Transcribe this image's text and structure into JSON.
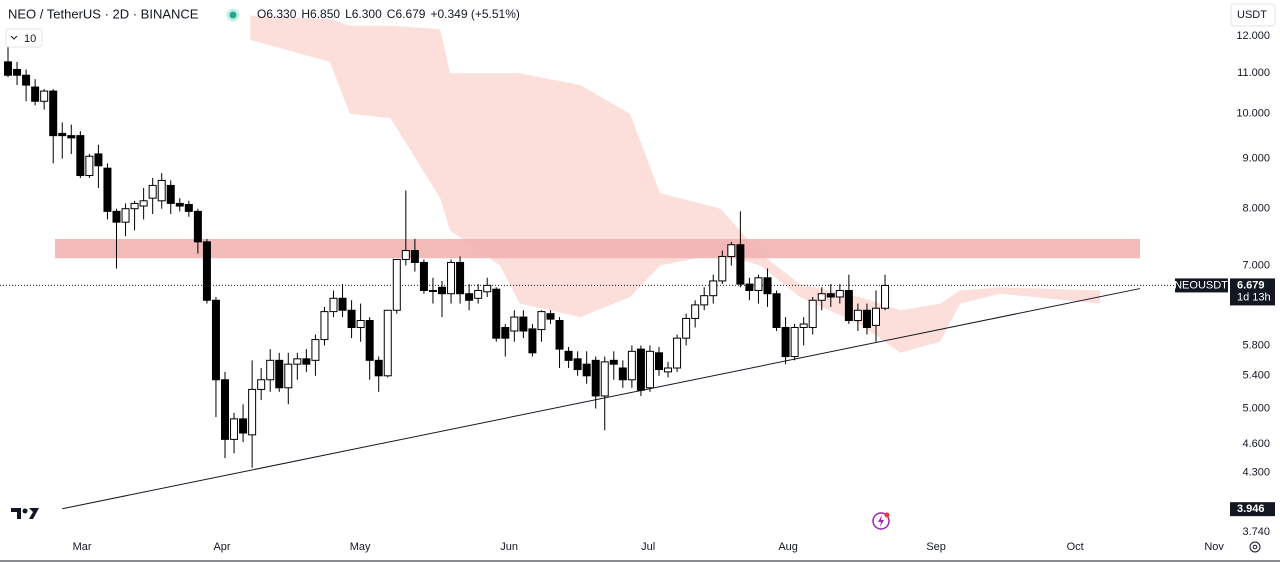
{
  "chart_data": {
    "type": "candlestick",
    "title": "NEO / TetherUS · 2D · BINANCE",
    "ohlc_text": [
      "O6.330",
      "H6.850",
      "L6.300",
      "C6.679",
      "+0.349 (+5.51%)"
    ],
    "interval_button": "10",
    "currency_button": "USDT",
    "symbol": "NEOUSDT",
    "countdown": "1d 13h",
    "log_scale": true,
    "up_color": "#ffffff",
    "down_color": "#000000",
    "border_color": "#000000",
    "open": [
      11.3,
      11.1,
      10.95,
      10.65,
      10.3,
      10.55,
      9.55,
      9.5,
      9.5,
      8.65,
      9.1,
      8.8,
      7.95,
      7.75,
      8.0,
      8.05,
      8.2,
      8.15,
      8.45,
      8.1,
      8.08,
      7.95,
      7.4,
      6.45,
      5.35,
      4.65,
      4.88,
      4.7,
      5.23,
      5.35,
      5.6,
      5.25,
      5.55,
      5.62,
      5.6,
      5.88,
      6.28,
      6.48,
      6.3,
      6.05,
      6.15,
      5.6,
      5.4,
      6.3,
      7.1,
      7.25,
      7.05,
      6.6,
      6.65,
      6.55,
      7.05,
      6.55,
      6.48,
      6.58,
      6.62,
      6.05,
      6.0,
      6.2,
      6.03,
      6.02,
      6.25,
      6.15,
      5.72,
      5.62,
      5.55,
      5.6,
      5.15,
      5.6,
      5.5,
      5.35,
      5.75,
      5.25,
      5.7,
      5.45,
      5.5,
      5.9,
      6.18,
      6.38,
      6.52,
      6.75,
      7.15,
      7.35,
      6.7,
      6.6,
      6.8,
      6.55,
      6.05,
      5.65,
      6.05,
      6.05,
      6.45,
      6.55,
      6.5,
      6.6,
      6.15,
      6.3,
      6.08,
      6.33
    ],
    "high": [
      11.7,
      11.3,
      11.1,
      10.85,
      10.6,
      10.6,
      9.8,
      9.75,
      9.6,
      9.1,
      9.3,
      8.9,
      8.0,
      8.1,
      8.15,
      8.4,
      8.6,
      8.7,
      8.55,
      8.2,
      8.15,
      8.0,
      7.45,
      6.5,
      5.45,
      4.95,
      5.05,
      5.6,
      5.5,
      5.75,
      5.7,
      5.7,
      5.7,
      5.75,
      5.95,
      6.35,
      6.6,
      6.7,
      6.45,
      6.4,
      6.2,
      5.65,
      6.3,
      7.1,
      8.35,
      7.45,
      7.1,
      6.8,
      6.75,
      7.1,
      7.15,
      6.7,
      6.7,
      6.8,
      6.65,
      6.1,
      6.3,
      6.3,
      6.1,
      6.3,
      6.3,
      6.2,
      5.78,
      5.72,
      5.72,
      5.65,
      5.65,
      5.72,
      5.6,
      5.8,
      5.8,
      5.8,
      5.78,
      5.58,
      5.95,
      6.25,
      6.45,
      6.65,
      6.85,
      7.25,
      7.4,
      7.95,
      6.8,
      6.85,
      6.95,
      6.6,
      6.2,
      6.1,
      6.2,
      6.5,
      6.65,
      6.7,
      6.7,
      6.85,
      6.4,
      6.4,
      6.6,
      6.85
    ],
    "low": [
      10.9,
      10.7,
      10.3,
      10.2,
      10.1,
      8.9,
      9.0,
      9.1,
      8.6,
      8.6,
      8.4,
      7.8,
      6.95,
      7.5,
      7.6,
      7.8,
      7.9,
      8.0,
      7.9,
      7.95,
      7.85,
      7.2,
      6.4,
      4.9,
      4.45,
      4.5,
      4.62,
      4.35,
      5.1,
      5.2,
      5.2,
      5.05,
      5.35,
      5.45,
      5.4,
      5.8,
      6.2,
      6.2,
      5.9,
      5.85,
      5.35,
      5.2,
      5.38,
      6.25,
      7.0,
      6.9,
      6.55,
      6.4,
      6.2,
      6.4,
      6.4,
      6.3,
      6.4,
      6.5,
      5.85,
      5.65,
      5.85,
      5.9,
      5.65,
      5.85,
      6.1,
      5.5,
      5.5,
      5.4,
      5.3,
      5.0,
      4.75,
      5.35,
      5.25,
      5.25,
      5.15,
      5.2,
      5.4,
      5.38,
      5.45,
      5.8,
      6.05,
      6.3,
      6.4,
      6.7,
      7.0,
      6.65,
      6.45,
      6.4,
      6.35,
      6.0,
      5.55,
      5.6,
      5.8,
      5.95,
      6.3,
      6.35,
      6.4,
      6.1,
      6.0,
      5.95,
      5.85,
      6.3
    ],
    "close": [
      10.95,
      10.95,
      10.7,
      10.3,
      10.55,
      9.5,
      9.5,
      9.45,
      8.65,
      9.05,
      8.85,
      7.95,
      7.75,
      8.0,
      8.1,
      8.15,
      8.45,
      8.55,
      8.1,
      8.05,
      7.95,
      7.4,
      6.45,
      5.35,
      4.65,
      4.88,
      4.72,
      5.23,
      5.35,
      5.6,
      5.25,
      5.55,
      5.62,
      5.55,
      5.88,
      6.28,
      6.48,
      6.3,
      6.05,
      6.15,
      5.6,
      5.4,
      6.3,
      7.1,
      7.25,
      7.05,
      6.6,
      6.6,
      6.55,
      7.05,
      6.55,
      6.45,
      6.6,
      6.68,
      5.9,
      5.9,
      6.2,
      6.0,
      5.7,
      6.28,
      6.17,
      5.75,
      5.6,
      5.48,
      5.4,
      5.15,
      5.58,
      5.55,
      5.35,
      5.72,
      5.22,
      5.72,
      5.48,
      5.5,
      5.9,
      6.18,
      6.38,
      6.52,
      6.75,
      7.15,
      7.35,
      6.7,
      6.6,
      6.8,
      6.55,
      6.05,
      5.65,
      6.05,
      6.1,
      6.45,
      6.55,
      6.5,
      6.6,
      6.15,
      6.3,
      6.05,
      6.33,
      6.679
    ],
    "cloud": {
      "color": "#fcd9d5",
      "x": [
        26.8,
        35.6,
        37.8,
        42.3,
        47.8,
        48.9,
        54.4,
        56.6,
        63.3,
        68.8,
        72.1,
        78.8,
        83.2,
        87.6,
        94.2,
        98.7,
        103.1,
        105.3,
        109.7,
        120.8
      ],
      "upper": [
        12.6,
        12.5,
        12.3,
        12.3,
        12.2,
        11.0,
        11.0,
        11.0,
        10.7,
        10.0,
        8.3,
        8.0,
        7.2,
        6.7,
        6.5,
        6.3,
        6.4,
        6.6,
        6.65,
        6.6
      ],
      "lower": [
        11.9,
        11.3,
        10.0,
        9.9,
        8.2,
        7.6,
        7.0,
        6.4,
        6.2,
        6.5,
        7.0,
        7.2,
        7.0,
        6.5,
        6.1,
        5.7,
        5.85,
        6.4,
        6.55,
        6.4
      ]
    },
    "zone": {
      "color": "#f2b3b3",
      "x": [
        5.2,
        125.2
      ],
      "range": [
        7.12,
        7.45
      ]
    },
    "trendline": {
      "color": "#131722",
      "x": [
        6.0,
        125.2
      ],
      "values": [
        3.95,
        6.63
      ]
    },
    "last_price": {
      "value": 6.679,
      "label": "6.679"
    },
    "line_price": {
      "value": 3.946,
      "label": "3.946"
    },
    "xlim": [
      -0.885,
      134.6
    ],
    "ylim": [
      3.67,
      13.07
    ],
    "xticks": [
      {
        "value": 8.19,
        "label": "Mar"
      },
      {
        "value": 23.67,
        "label": "Apr"
      },
      {
        "value": 38.94,
        "label": "May"
      },
      {
        "value": 55.42,
        "label": "Jun"
      },
      {
        "value": 70.8,
        "label": "Jul"
      },
      {
        "value": 86.28,
        "label": "Aug"
      },
      {
        "value": 102.65,
        "label": "Sep"
      },
      {
        "value": 118.03,
        "label": "Oct"
      },
      {
        "value": 133.4,
        "label": "Nov"
      }
    ],
    "yticks": [
      {
        "value": 12,
        "label": "12.000"
      },
      {
        "value": 11,
        "label": "11.000"
      },
      {
        "value": 10,
        "label": "10.000"
      },
      {
        "value": 9,
        "label": "9.000"
      },
      {
        "value": 8,
        "label": "8.000"
      },
      {
        "value": 7,
        "label": "7.000"
      },
      {
        "value": 5.8,
        "label": "5.800"
      },
      {
        "value": 5.4,
        "label": "5.400"
      },
      {
        "value": 5,
        "label": "5.000"
      },
      {
        "value": 4.6,
        "label": "4.600"
      },
      {
        "value": 4.3,
        "label": "4.300"
      },
      {
        "value": 3.74,
        "label": "3.740"
      }
    ]
  }
}
